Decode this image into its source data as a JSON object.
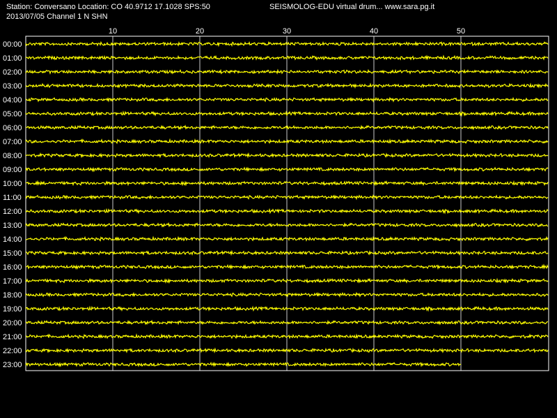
{
  "header": {
    "station_line": "Station: Conversano Location: CO 40.9712 17.1028 SPS:50",
    "channel_line": "2013/07/05  Channel 1 N SHN",
    "software_line": "SEISMOLOG-EDU virtual drum... www.sara.pg.it"
  },
  "colors": {
    "background": "#000000",
    "trace": "#ffff00",
    "grid": "#ffffff",
    "text": "#ffffff"
  },
  "chart_data": {
    "type": "line",
    "title": "",
    "xlabel": "",
    "ylabel": "",
    "x_ticks": [
      10,
      20,
      30,
      40,
      50
    ],
    "x_range": [
      0,
      60
    ],
    "grid": true,
    "rows": [
      {
        "label": "00:00",
        "minutes": 60
      },
      {
        "label": "01:00",
        "minutes": 60
      },
      {
        "label": "02:00",
        "minutes": 60
      },
      {
        "label": "03:00",
        "minutes": 60
      },
      {
        "label": "04:00",
        "minutes": 60
      },
      {
        "label": "05:00",
        "minutes": 60
      },
      {
        "label": "06:00",
        "minutes": 60
      },
      {
        "label": "07:00",
        "minutes": 60
      },
      {
        "label": "08:00",
        "minutes": 60
      },
      {
        "label": "09:00",
        "minutes": 60
      },
      {
        "label": "10:00",
        "minutes": 60
      },
      {
        "label": "11:00",
        "minutes": 60
      },
      {
        "label": "12:00",
        "minutes": 60
      },
      {
        "label": "13:00",
        "minutes": 60
      },
      {
        "label": "14:00",
        "minutes": 60
      },
      {
        "label": "15:00",
        "minutes": 60
      },
      {
        "label": "16:00",
        "minutes": 60
      },
      {
        "label": "17:00",
        "minutes": 60
      },
      {
        "label": "18:00",
        "minutes": 60
      },
      {
        "label": "19:00",
        "minutes": 60
      },
      {
        "label": "20:00",
        "minutes": 60
      },
      {
        "label": "21:00",
        "minutes": 60
      },
      {
        "label": "22:00",
        "minutes": 60
      },
      {
        "label": "23:00",
        "minutes": 50
      }
    ]
  }
}
